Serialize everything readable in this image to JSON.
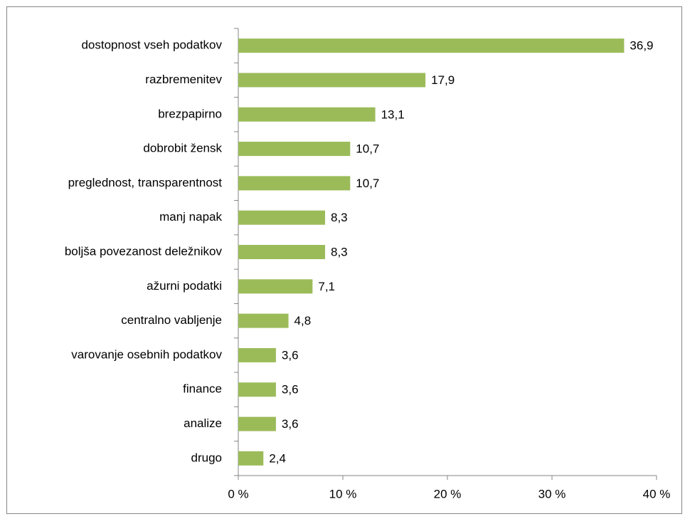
{
  "chart_data": {
    "type": "bar",
    "orientation": "horizontal",
    "categories": [
      "dostopnost vseh podatkov",
      "razbremenitev",
      "brezpapirno",
      "dobrobit žensk",
      "preglednost, transparentnost",
      "manj napak",
      "boljša povezanost deležnikov",
      "ažurni podatki",
      "centralno vabljenje",
      "varovanje osebnih podatkov",
      "finance",
      "analize",
      "drugo"
    ],
    "values": [
      36.9,
      17.9,
      13.1,
      10.7,
      10.7,
      8.3,
      8.3,
      7.1,
      4.8,
      3.6,
      3.6,
      3.6,
      2.4
    ],
    "value_labels": [
      "36,9",
      "17,9",
      "13,1",
      "10,7",
      "10,7",
      "8,3",
      "8,3",
      "7,1",
      "4,8",
      "3,6",
      "3,6",
      "3,6",
      "2,4"
    ],
    "color": "#9bbb59",
    "xlim": [
      0,
      40
    ],
    "xticks": [
      {
        "value": 0,
        "label": "0 %"
      },
      {
        "value": 10,
        "label": "10 %"
      },
      {
        "value": 20,
        "label": "20 %"
      },
      {
        "value": 30,
        "label": "30 %"
      },
      {
        "value": 40,
        "label": "40 %"
      }
    ],
    "grid": false
  }
}
